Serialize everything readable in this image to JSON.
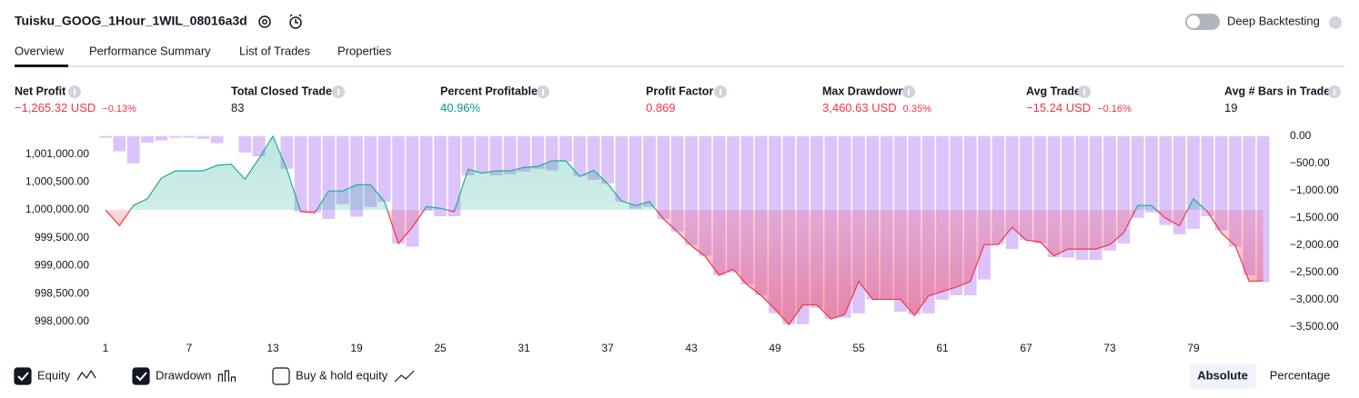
{
  "header": {
    "title": "Tuisku_GOOG_1Hour_1WIL_08016a3d",
    "toggle_label": "Deep Backtesting"
  },
  "tabs": [
    "Overview",
    "Performance Summary",
    "List of Trades",
    "Properties"
  ],
  "metrics": [
    {
      "label": "Net Profit",
      "value": "−1,265.32 USD",
      "sub": "−0.13%"
    },
    {
      "label": "Total Closed Trades",
      "value": "83"
    },
    {
      "label": "Percent Profitable",
      "value": "40.96%"
    },
    {
      "label": "Profit Factor",
      "value": "0.869"
    },
    {
      "label": "Max Drawdown",
      "value": "3,460.63 USD",
      "sub": "0.35%"
    },
    {
      "label": "Avg Trade",
      "value": "−15.24 USD",
      "sub": "−0.16%"
    },
    {
      "label": "Avg # Bars in Trades",
      "value": "19"
    }
  ],
  "chart_data": {
    "type": "combo",
    "x": [
      1,
      2,
      3,
      4,
      5,
      6,
      7,
      8,
      9,
      10,
      11,
      12,
      13,
      14,
      15,
      16,
      17,
      18,
      19,
      20,
      21,
      22,
      23,
      24,
      25,
      26,
      27,
      28,
      29,
      30,
      31,
      32,
      33,
      34,
      35,
      36,
      37,
      38,
      39,
      40,
      41,
      42,
      43,
      44,
      45,
      46,
      47,
      48,
      49,
      50,
      51,
      52,
      53,
      54,
      55,
      56,
      57,
      58,
      59,
      60,
      61,
      62,
      63,
      64,
      65,
      66,
      67,
      68,
      69,
      70,
      71,
      72,
      73,
      74,
      75,
      76,
      77,
      78,
      79,
      80,
      81,
      82,
      83,
      84
    ],
    "xlim": [
      1,
      85
    ],
    "xticks": [
      1,
      7,
      13,
      19,
      25,
      31,
      37,
      43,
      49,
      55,
      61,
      67,
      73,
      79
    ],
    "ylim": [
      997740,
      1001400
    ],
    "yticks": [
      {
        "value": 998000,
        "label": "998,000.00"
      },
      {
        "value": 998500,
        "label": "998,500.00"
      },
      {
        "value": 999000,
        "label": "999,000.00"
      },
      {
        "value": 999500,
        "label": "999,500.00"
      },
      {
        "value": 1000000,
        "label": "1,000,000.00"
      },
      {
        "value": 1000500,
        "label": "1,000,500.00"
      },
      {
        "value": 1001000,
        "label": "1,001,000.00"
      }
    ],
    "y2lim": [
      -3670,
      80
    ],
    "y2ticks": [
      {
        "value": 0,
        "label": "0.00"
      },
      {
        "value": -500,
        "label": "−500.00"
      },
      {
        "value": -1000,
        "label": "−1,000.00"
      },
      {
        "value": -1500,
        "label": "−1,500.00"
      },
      {
        "value": -2000,
        "label": "−2,000.00"
      },
      {
        "value": -2500,
        "label": "−2,500.00"
      },
      {
        "value": -3000,
        "label": "−3,000.00"
      },
      {
        "value": -3500,
        "label": "−3,500.00"
      }
    ],
    "series": [
      {
        "name": "Drawdown",
        "type": "bar",
        "axis": "y2",
        "color": "#dcc4fb",
        "values": [
          -30,
          -280,
          -500,
          -120,
          -80,
          -30,
          -30,
          -50,
          -130,
          0,
          -300,
          -370,
          0,
          -600,
          -1380,
          -1400,
          -1520,
          -1250,
          -1480,
          -1300,
          -1200,
          -1970,
          -2030,
          -1370,
          -1470,
          -1470,
          -720,
          -670,
          -720,
          -700,
          -650,
          -600,
          -630,
          -470,
          -730,
          -800,
          -870,
          -1200,
          -1330,
          -1300,
          -1520,
          -1750,
          -2000,
          -2200,
          -2550,
          -2500,
          -2720,
          -2920,
          -3250,
          -3450,
          -3450,
          -3150,
          -3350,
          -3330,
          -3250,
          -3000,
          -3000,
          -3220,
          -3270,
          -3250,
          -3000,
          -2920,
          -2920,
          -2630,
          -1980,
          -2070,
          -1900,
          -1970,
          -2220,
          -2230,
          -2270,
          -2270,
          -2100,
          -1970,
          -1500,
          -1400,
          -1630,
          -1800,
          -1700,
          -1470,
          -1730,
          -2030,
          -2550,
          -2680
        ]
      },
      {
        "name": "Equity",
        "type": "area",
        "axis": "y",
        "color": "#22ab94",
        "negative_color": "#f23645",
        "values": [
          1000000,
          999720,
          1000080,
          1000200,
          1000570,
          1000700,
          1000700,
          1000700,
          1000800,
          1000820,
          1000550,
          1000920,
          1001320,
          1000730,
          999970,
          999950,
          1000340,
          1000340,
          1000450,
          1000450,
          1000150,
          999400,
          999690,
          1000060,
          1000030,
          999970,
          1000730,
          1000660,
          1000700,
          1000700,
          1000760,
          1000780,
          1000880,
          1000880,
          1000600,
          1000710,
          1000470,
          1000160,
          1000080,
          1000150,
          999840,
          999610,
          999360,
          999170,
          998830,
          998940,
          998660,
          998470,
          998220,
          997950,
          998300,
          998300,
          998050,
          998130,
          998720,
          998400,
          998400,
          998400,
          998110,
          998460,
          998540,
          998620,
          998720,
          999380,
          999380,
          999690,
          999460,
          999430,
          999180,
          999300,
          999300,
          999300,
          999380,
          999590,
          1000080,
          1000080,
          999850,
          999720,
          1000200,
          999970,
          999590,
          999360,
          998720,
          998735
        ]
      }
    ]
  },
  "legend": [
    {
      "label": "Equity",
      "checked": true
    },
    {
      "label": "Drawdown",
      "checked": true
    },
    {
      "label": "Buy & hold equity",
      "checked": false
    }
  ],
  "modes": [
    "Absolute",
    "Percentage"
  ]
}
